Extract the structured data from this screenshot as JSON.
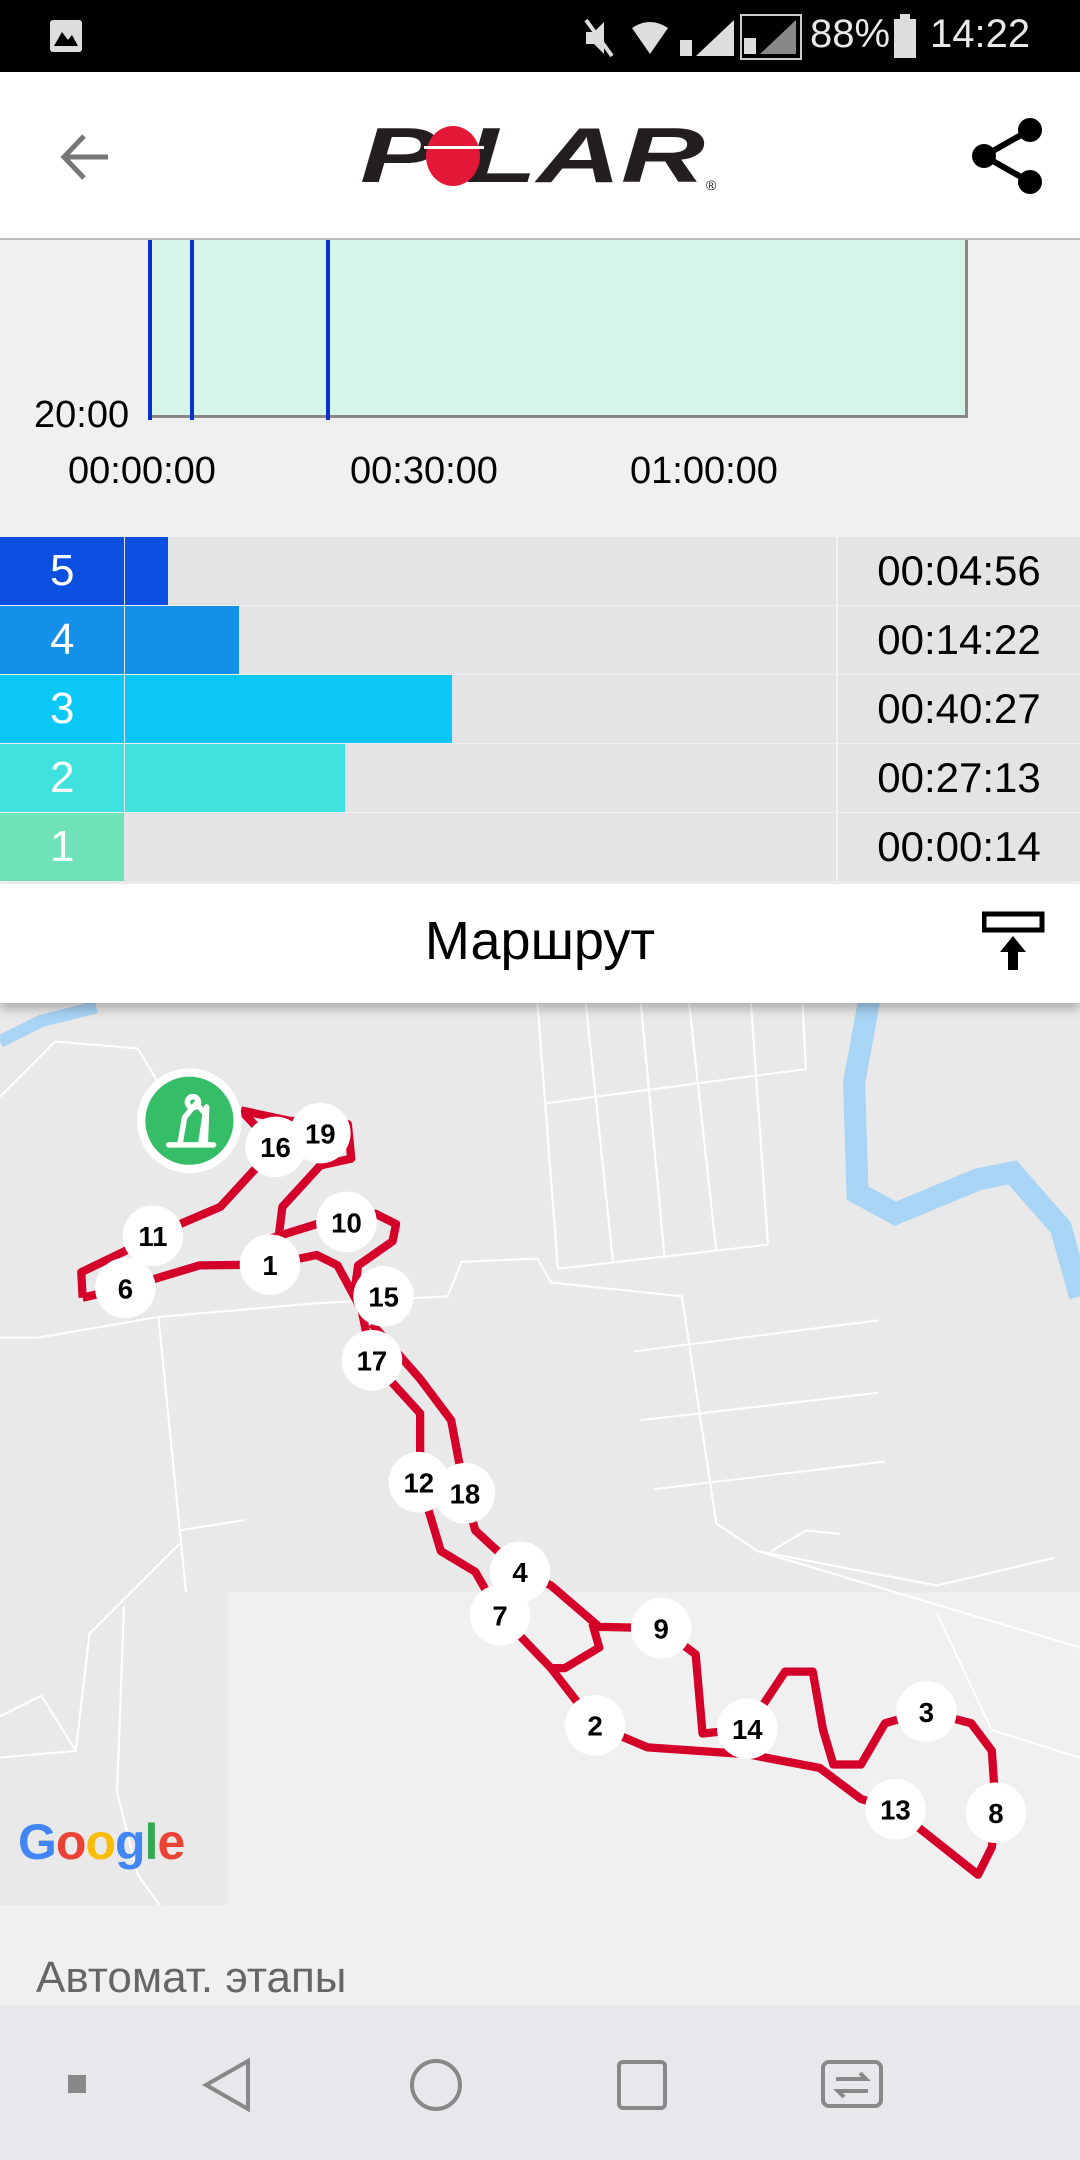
{
  "status_bar": {
    "battery": "88%",
    "time": "14:22",
    "icons": [
      "image-icon",
      "mute-icon",
      "wifi-icon",
      "sim1-signal-icon",
      "sim2-signal-icon",
      "battery-icon"
    ]
  },
  "header": {
    "logo": "POLAR",
    "back_icon": "arrow-left-icon",
    "share_icon": "share-icon"
  },
  "hr_chart": {
    "y_tick": "20:00",
    "x_ticks": [
      "00:00:00",
      "00:30:00",
      "01:00:00"
    ],
    "fill_color": "#d4f5e8",
    "line_color": "#0a2fd0"
  },
  "zones": [
    {
      "zone": "5",
      "time": "00:04:56",
      "fraction": 0.06,
      "color": "#0a4fe0"
    },
    {
      "zone": "4",
      "time": "00:14:22",
      "fraction": 0.16,
      "color": "#1490e8"
    },
    {
      "zone": "3",
      "time": "00:40:27",
      "fraction": 0.46,
      "color": "#0cc8f8"
    },
    {
      "zone": "2",
      "time": "00:27:13",
      "fraction": 0.31,
      "color": "#40e2e0"
    },
    {
      "zone": "1",
      "time": "00:00:14",
      "fraction": 0.0,
      "color": "#70e2b8"
    }
  ],
  "route": {
    "title": "Маршрут",
    "collapse_icon": "collapse-up-icon",
    "route_color": "#d4002a",
    "start_icon": "cross-country-skiing-icon",
    "attribution": "Google",
    "laps": [
      "1",
      "2",
      "3",
      "4",
      "6",
      "7",
      "8",
      "9",
      "10",
      "11",
      "12",
      "13",
      "14",
      "15",
      "16",
      "17",
      "18",
      "19"
    ]
  },
  "auto_laps": {
    "title": "Автомат. этапы"
  },
  "nav_bar": {
    "icons": [
      "menu-dot-icon",
      "back-triangle-icon",
      "home-circle-icon",
      "recents-square-icon",
      "switch-sim-icon"
    ]
  }
}
